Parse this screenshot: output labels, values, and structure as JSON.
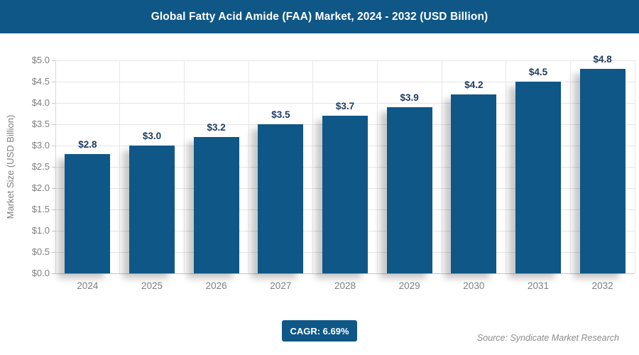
{
  "header": {
    "title": "Global Fatty Acid Amide (FAA) Market, 2024 - 2032 (USD Billion)"
  },
  "chart_data": {
    "type": "bar",
    "title": "Global Fatty Acid Amide (FAA) Market, 2024 - 2032 (USD Billion)",
    "categories": [
      "2024",
      "2025",
      "2026",
      "2027",
      "2028",
      "2029",
      "2030",
      "2031",
      "2032"
    ],
    "values": [
      2.8,
      3.0,
      3.2,
      3.5,
      3.7,
      3.9,
      4.2,
      4.5,
      4.8
    ],
    "value_labels": [
      "$2.8",
      "$3.0",
      "$3.2",
      "$3.5",
      "$3.7",
      "$3.9",
      "$4.2",
      "$4.5",
      "$4.8"
    ],
    "xlabel": "",
    "ylabel": "Market Size (USD Billion)",
    "ylim": [
      0,
      5.0
    ],
    "ytick_step": 0.5,
    "ytick_labels": [
      "$0.0",
      "$0.5",
      "$1.0",
      "$1.5",
      "$2.0",
      "$2.5",
      "$3.0",
      "$3.5",
      "$4.0",
      "$4.5",
      "$5.0"
    ],
    "grid": true,
    "legend": "none",
    "bar_color": "#0e5787"
  },
  "footer": {
    "cagr_label": "CAGR: 6.69%",
    "source": "Source: Syndicate Market Research"
  },
  "colors": {
    "primary_blue": "#0e5787",
    "value_label_text": "#1f3b60",
    "axis_text": "#7f7f7f",
    "gridline": "#e4e4e4",
    "axis_line": "#c6c6c6",
    "source_text": "#8c8c8c"
  }
}
